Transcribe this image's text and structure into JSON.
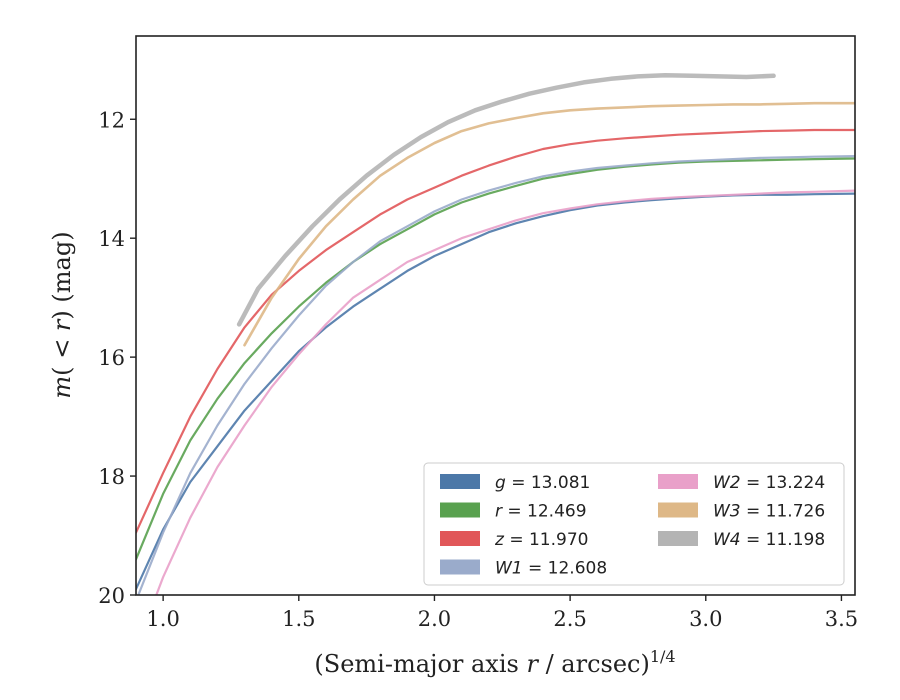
{
  "chart_data": {
    "type": "line",
    "xlabel": "(Semi-major axis r / arcsec)",
    "xlabel_parts": {
      "prefix": "(Semi-major axis ",
      "var": "r",
      "suffix": " / arcsec)",
      "exponent": "1/4"
    },
    "ylabel_parts": {
      "m": "m",
      "open": "(",
      "lt": " < ",
      "r": "r",
      "close": ")",
      "unit": " (mag)"
    },
    "xlim": [
      0.9,
      3.55
    ],
    "ylim": [
      20,
      10.6
    ],
    "y_inverted": true,
    "xticks": [
      "1.0",
      "1.5",
      "2.0",
      "2.5",
      "3.0",
      "3.5"
    ],
    "xtick_values": [
      1.0,
      1.5,
      2.0,
      2.5,
      3.0,
      3.5
    ],
    "yticks": [
      "12",
      "14",
      "16",
      "18",
      "20"
    ],
    "ytick_values": [
      12,
      14,
      16,
      18,
      20
    ],
    "legend_location": "lower-right",
    "legend_columns": 2,
    "series": [
      {
        "name": "g = 13.081",
        "band": "g",
        "value": "13.081",
        "color": "#4c78a8",
        "x": [
          0.9,
          1.0,
          1.1,
          1.2,
          1.3,
          1.4,
          1.5,
          1.6,
          1.7,
          1.8,
          1.9,
          2.0,
          2.1,
          2.2,
          2.3,
          2.4,
          2.5,
          2.6,
          2.7,
          2.8,
          2.9,
          3.0,
          3.1,
          3.2,
          3.3,
          3.4,
          3.55
        ],
        "y": [
          19.9,
          18.9,
          18.1,
          17.5,
          16.9,
          16.4,
          15.9,
          15.5,
          15.15,
          14.85,
          14.55,
          14.3,
          14.1,
          13.9,
          13.75,
          13.63,
          13.53,
          13.45,
          13.4,
          13.36,
          13.33,
          13.3,
          13.28,
          13.27,
          13.27,
          13.26,
          13.25
        ]
      },
      {
        "name": "r = 12.469",
        "band": "r",
        "value": "12.469",
        "color": "#59a14f",
        "x": [
          0.9,
          1.0,
          1.1,
          1.2,
          1.3,
          1.4,
          1.5,
          1.6,
          1.7,
          1.8,
          1.9,
          2.0,
          2.1,
          2.2,
          2.3,
          2.4,
          2.5,
          2.6,
          2.7,
          2.8,
          2.9,
          3.0,
          3.1,
          3.2,
          3.3,
          3.4,
          3.55
        ],
        "y": [
          19.4,
          18.3,
          17.4,
          16.7,
          16.1,
          15.6,
          15.15,
          14.75,
          14.4,
          14.1,
          13.85,
          13.6,
          13.4,
          13.25,
          13.12,
          13.0,
          12.92,
          12.85,
          12.8,
          12.76,
          12.73,
          12.71,
          12.7,
          12.69,
          12.68,
          12.67,
          12.66
        ]
      },
      {
        "name": "z = 11.970",
        "band": "z",
        "value": "11.970",
        "color": "#e15759",
        "x": [
          0.9,
          1.0,
          1.1,
          1.2,
          1.3,
          1.4,
          1.5,
          1.6,
          1.7,
          1.8,
          1.9,
          2.0,
          2.1,
          2.2,
          2.3,
          2.4,
          2.5,
          2.6,
          2.7,
          2.8,
          2.9,
          3.0,
          3.1,
          3.2,
          3.3,
          3.4,
          3.55
        ],
        "y": [
          18.95,
          17.95,
          17.0,
          16.2,
          15.5,
          14.95,
          14.55,
          14.2,
          13.9,
          13.6,
          13.35,
          13.15,
          12.95,
          12.78,
          12.63,
          12.5,
          12.42,
          12.36,
          12.32,
          12.29,
          12.26,
          12.24,
          12.22,
          12.2,
          12.19,
          12.18,
          12.18
        ]
      },
      {
        "name": "W1 = 12.608",
        "band": "W1",
        "value": "12.608",
        "color": "#9aabcb",
        "x": [
          0.9,
          1.0,
          1.1,
          1.2,
          1.3,
          1.4,
          1.5,
          1.6,
          1.7,
          1.8,
          1.9,
          2.0,
          2.1,
          2.2,
          2.3,
          2.4,
          2.5,
          2.6,
          2.7,
          2.8,
          2.9,
          3.0,
          3.1,
          3.2,
          3.3,
          3.4,
          3.55
        ],
        "y": [
          20.1,
          18.95,
          17.95,
          17.15,
          16.45,
          15.85,
          15.3,
          14.8,
          14.4,
          14.05,
          13.8,
          13.55,
          13.35,
          13.2,
          13.07,
          12.96,
          12.88,
          12.82,
          12.78,
          12.74,
          12.71,
          12.69,
          12.67,
          12.65,
          12.64,
          12.63,
          12.62
        ]
      },
      {
        "name": "W2 = 13.224",
        "band": "W2",
        "value": "13.224",
        "color": "#e9a0c9",
        "x": [
          0.9,
          1.0,
          1.1,
          1.2,
          1.3,
          1.4,
          1.5,
          1.6,
          1.7,
          1.8,
          1.9,
          2.0,
          2.1,
          2.2,
          2.3,
          2.4,
          2.5,
          2.6,
          2.7,
          2.8,
          2.9,
          3.0,
          3.1,
          3.2,
          3.3,
          3.4,
          3.55
        ],
        "y": [
          20.9,
          19.7,
          18.7,
          17.85,
          17.15,
          16.5,
          15.95,
          15.45,
          15.0,
          14.7,
          14.4,
          14.2,
          14.0,
          13.85,
          13.7,
          13.58,
          13.5,
          13.43,
          13.38,
          13.34,
          13.31,
          13.29,
          13.27,
          13.25,
          13.23,
          13.22,
          13.2
        ]
      },
      {
        "name": "W3 = 11.726",
        "band": "W3",
        "value": "11.726",
        "color": "#deb887",
        "x": [
          1.3,
          1.4,
          1.5,
          1.6,
          1.7,
          1.8,
          1.9,
          2.0,
          2.1,
          2.2,
          2.3,
          2.4,
          2.5,
          2.6,
          2.7,
          2.8,
          2.9,
          3.0,
          3.1,
          3.2,
          3.3,
          3.4,
          3.55
        ],
        "y": [
          15.8,
          15.0,
          14.35,
          13.8,
          13.35,
          12.95,
          12.65,
          12.4,
          12.2,
          12.07,
          11.98,
          11.9,
          11.85,
          11.82,
          11.8,
          11.78,
          11.77,
          11.76,
          11.75,
          11.75,
          11.74,
          11.73,
          11.73
        ]
      },
      {
        "name": "W4 = 11.198",
        "band": "W4",
        "value": "11.198",
        "color": "#b4b4b4",
        "x": [
          1.28,
          1.35,
          1.45,
          1.55,
          1.65,
          1.75,
          1.85,
          1.95,
          2.05,
          2.15,
          2.25,
          2.35,
          2.45,
          2.55,
          2.65,
          2.75,
          2.85,
          2.95,
          3.05,
          3.15,
          3.25
        ],
        "y": [
          15.45,
          14.85,
          14.3,
          13.8,
          13.35,
          12.95,
          12.6,
          12.3,
          12.05,
          11.85,
          11.7,
          11.57,
          11.47,
          11.38,
          11.32,
          11.28,
          11.26,
          11.27,
          11.28,
          11.29,
          11.27
        ]
      }
    ]
  }
}
